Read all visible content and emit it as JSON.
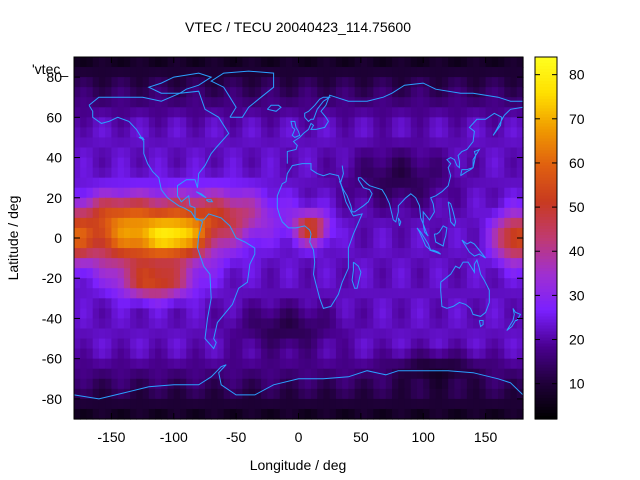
{
  "chart_data": {
    "type": "heatmap",
    "title": "VTEC / TECU 20040423_114.75600",
    "xlabel": "Longitude / deg",
    "ylabel": "Latitude / deg",
    "key_label": "'vtec_",
    "xlim": [
      -180,
      180
    ],
    "ylim": [
      -90,
      90
    ],
    "x_ticks": [
      -150,
      -100,
      -50,
      0,
      50,
      100,
      150
    ],
    "y_ticks": [
      -80,
      -60,
      -40,
      -20,
      0,
      20,
      40,
      60,
      80
    ],
    "colorbar": {
      "range": [
        2,
        84
      ],
      "ticks": [
        10,
        20,
        30,
        40,
        50,
        60,
        70,
        80
      ],
      "palette": [
        "#000000",
        "#20003a",
        "#4a0090",
        "#7a20ff",
        "#a030d0",
        "#c03a70",
        "#c83a20",
        "#e06010",
        "#f09a00",
        "#ffe000",
        "#ffff20"
      ]
    },
    "grid": false,
    "legend_position": "top-left",
    "coastline_color": "#2aa0ff",
    "blobs": [
      {
        "lon": -125,
        "lat": 2,
        "slon": 55,
        "slat": 16,
        "amp": 46
      },
      {
        "lon": -115,
        "lat": -22,
        "slon": 28,
        "slat": 8,
        "amp": 28
      },
      {
        "lon": -95,
        "lat": 0,
        "slon": 20,
        "slat": 9,
        "amp": 18
      },
      {
        "lon": -150,
        "lat": 14,
        "slon": 25,
        "slat": 8,
        "amp": 10
      },
      {
        "lon": -60,
        "lat": 12,
        "slon": 40,
        "slat": 12,
        "amp": 20
      },
      {
        "lon": 10,
        "lat": 5,
        "slon": 14,
        "slat": 8,
        "amp": 30
      },
      {
        "lon": 175,
        "lat": 0,
        "slon": 18,
        "slat": 12,
        "amp": 34
      },
      {
        "lon": -180,
        "lat": 0,
        "slon": 12,
        "slat": 12,
        "amp": 20
      }
    ],
    "dark_regions": [
      {
        "lon": 80,
        "lat": 30,
        "slon": 40,
        "slat": 15,
        "amp": 10
      },
      {
        "lon": -10,
        "lat": -45,
        "slon": 40,
        "slat": 12,
        "amp": 10
      },
      {
        "lon": 110,
        "lat": -65,
        "slon": 35,
        "slat": 8,
        "amp": 9
      }
    ]
  }
}
